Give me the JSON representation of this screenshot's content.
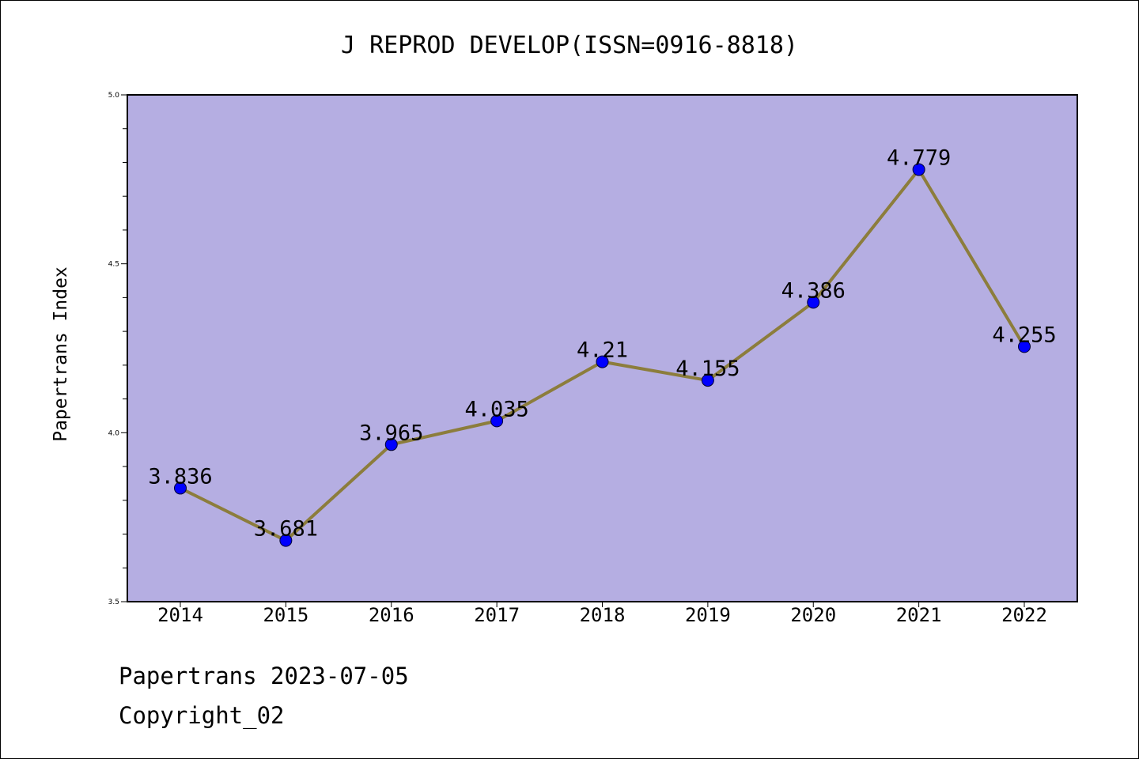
{
  "footer": {
    "line1": "Papertrans 2023-07-05",
    "line2": "Copyright_02"
  },
  "colors": {
    "plot_background": "#b5aee2",
    "line": "#8c7d3c",
    "marker": "#0000ff",
    "frame": "#000000"
  },
  "chart_data": {
    "type": "line",
    "title": "J REPROD DEVELOP(ISSN=0916-8818)",
    "xlabel": "",
    "ylabel": "Papertrans Index",
    "categories": [
      "2014",
      "2015",
      "2016",
      "2017",
      "2018",
      "2019",
      "2020",
      "2021",
      "2022"
    ],
    "series": [
      {
        "values": [
          3.836,
          3.681,
          3.965,
          4.035,
          4.21,
          4.155,
          4.386,
          4.779,
          4.255
        ],
        "labels": [
          "3.836",
          "3.681",
          "3.965",
          "4.035",
          "4.21",
          "4.155",
          "4.386",
          "4.779",
          "4.255"
        ]
      }
    ],
    "ylim": [
      3.5,
      5.0
    ],
    "yticks": [
      "3.5",
      "4.0",
      "4.5",
      "5.0"
    ],
    "y_minor_step": 0.1,
    "grid": false,
    "legend": "none"
  }
}
